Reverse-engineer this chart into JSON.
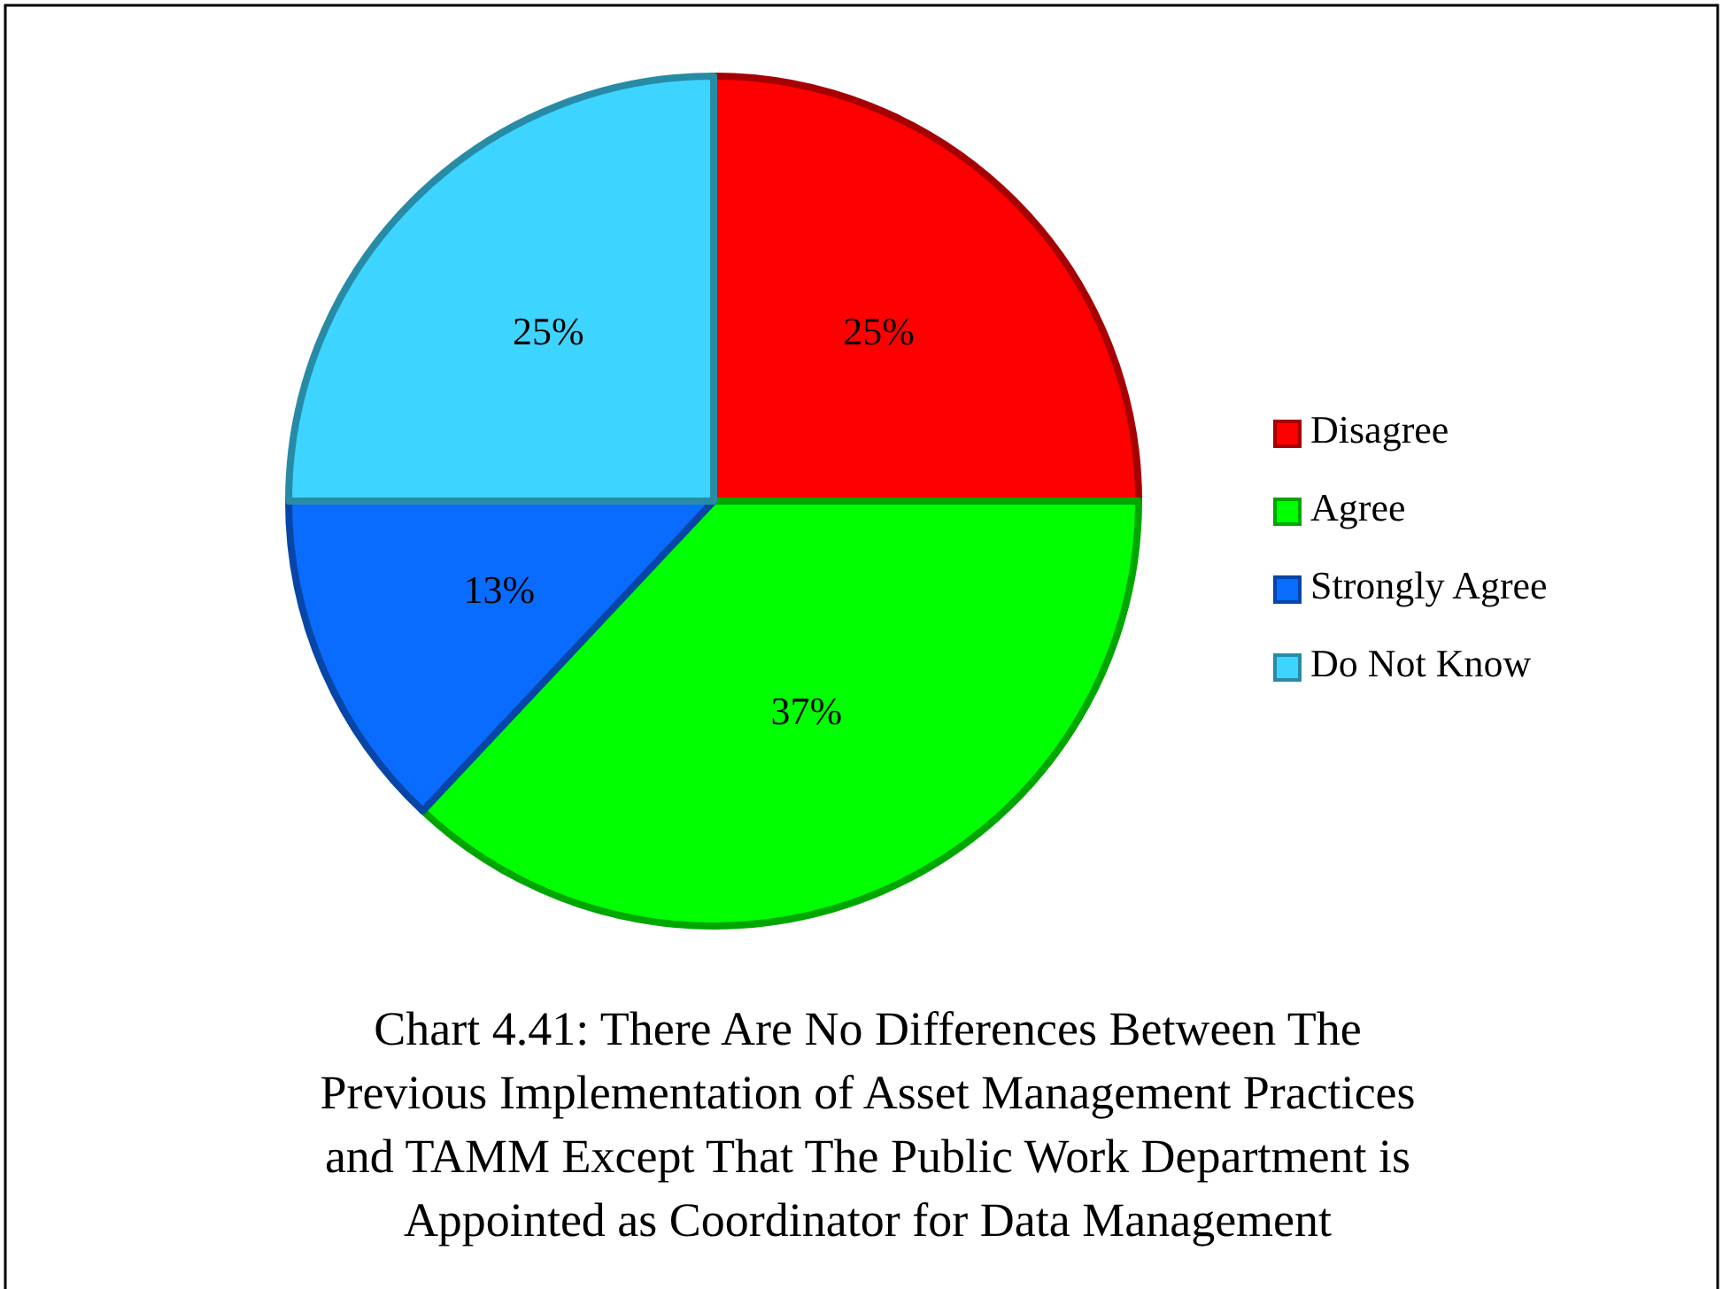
{
  "chart_data": {
    "type": "pie",
    "title": "Chart 4.41: There Are No Differences Between The Previous Implementation of Asset Management Practices and TAMM Except That The Public Work Department is Appointed as Coordinator for Data Management",
    "categories": [
      "Disagree",
      "Agree",
      "Strongly Agree",
      "Do Not Know"
    ],
    "values": [
      25,
      37,
      13,
      25
    ],
    "value_labels": [
      "25%",
      "37%",
      "13%",
      "25%"
    ],
    "colors": [
      "#ff0000",
      "#00ff00",
      "#0a6cff",
      "#3dd5ff"
    ],
    "legend": "right"
  }
}
